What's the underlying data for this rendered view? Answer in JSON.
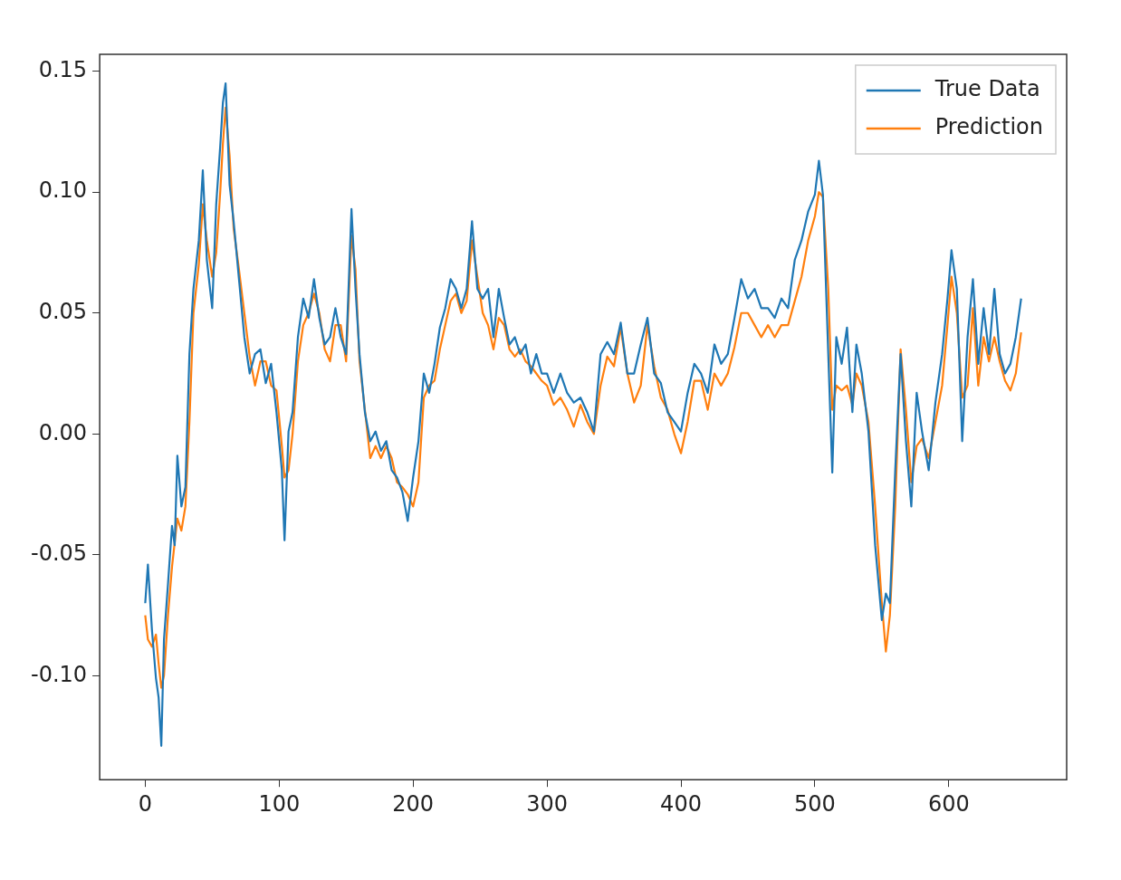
{
  "chart_data": {
    "type": "line",
    "xlim": [
      -34,
      688
    ],
    "ylim": [
      -0.143,
      0.157
    ],
    "xticks": [
      0,
      100,
      200,
      300,
      400,
      500,
      600
    ],
    "yticks": [
      {
        "value": -0.1,
        "label": "-0.10"
      },
      {
        "value": -0.05,
        "label": "-0.05"
      },
      {
        "value": 0,
        "label": "0.00"
      },
      {
        "value": 0.05,
        "label": "0.05"
      },
      {
        "value": 0.1,
        "label": "0.10"
      },
      0.15
    ],
    "grid": false,
    "legend": "top right",
    "marker": "none",
    "line_style": "solid",
    "x": [
      0,
      2,
      5,
      8,
      10,
      12,
      14,
      17,
      20,
      22,
      24,
      27,
      30,
      33,
      36,
      40,
      43,
      46,
      50,
      53,
      56,
      58,
      60,
      63,
      66,
      70,
      74,
      78,
      82,
      86,
      90,
      94,
      98,
      102,
      104,
      107,
      110,
      114,
      118,
      122,
      126,
      130,
      134,
      138,
      142,
      146,
      150,
      154,
      157,
      160,
      164,
      168,
      172,
      176,
      180,
      184,
      188,
      192,
      196,
      200,
      204,
      208,
      212,
      216,
      220,
      224,
      228,
      232,
      236,
      240,
      244,
      248,
      252,
      256,
      260,
      264,
      268,
      272,
      276,
      280,
      284,
      288,
      292,
      296,
      300,
      305,
      310,
      315,
      320,
      325,
      330,
      335,
      340,
      345,
      350,
      355,
      360,
      365,
      370,
      375,
      380,
      385,
      390,
      395,
      400,
      405,
      410,
      415,
      420,
      425,
      430,
      435,
      440,
      445,
      450,
      455,
      460,
      465,
      470,
      475,
      480,
      485,
      490,
      495,
      500,
      503,
      506,
      510,
      513,
      516,
      520,
      524,
      528,
      531,
      535,
      540,
      545,
      550,
      553,
      556,
      560,
      564,
      568,
      572,
      576,
      580,
      585,
      590,
      595,
      599,
      602,
      606,
      610,
      614,
      618,
      622,
      626,
      630,
      634,
      638,
      642,
      646,
      650,
      654
    ],
    "series": [
      {
        "name": "True Data",
        "color": "#1f77b4",
        "values": [
          -0.07,
          -0.054,
          -0.081,
          -0.101,
          -0.109,
          -0.129,
          -0.085,
          -0.062,
          -0.038,
          -0.046,
          -0.009,
          -0.03,
          -0.022,
          0.033,
          0.06,
          0.08,
          0.109,
          0.072,
          0.052,
          0.095,
          0.119,
          0.137,
          0.145,
          0.103,
          0.088,
          0.064,
          0.04,
          0.025,
          0.033,
          0.035,
          0.021,
          0.029,
          0.009,
          -0.015,
          -0.044,
          0.001,
          0.009,
          0.04,
          0.056,
          0.048,
          0.064,
          0.048,
          0.037,
          0.04,
          0.052,
          0.04,
          0.033,
          0.093,
          0.06,
          0.033,
          0.009,
          -0.003,
          0.001,
          -0.007,
          -0.003,
          -0.015,
          -0.018,
          -0.024,
          -0.036,
          -0.018,
          -0.003,
          0.025,
          0.017,
          0.029,
          0.044,
          0.052,
          0.064,
          0.06,
          0.052,
          0.06,
          0.088,
          0.06,
          0.056,
          0.06,
          0.04,
          0.06,
          0.048,
          0.037,
          0.04,
          0.033,
          0.037,
          0.025,
          0.033,
          0.025,
          0.025,
          0.017,
          0.025,
          0.017,
          0.013,
          0.015,
          0.009,
          0.001,
          0.033,
          0.038,
          0.033,
          0.046,
          0.025,
          0.025,
          0.037,
          0.048,
          0.025,
          0.021,
          0.009,
          0.005,
          0.001,
          0.017,
          0.029,
          0.025,
          0.017,
          0.037,
          0.029,
          0.033,
          0.048,
          0.064,
          0.056,
          0.06,
          0.052,
          0.052,
          0.048,
          0.056,
          0.052,
          0.072,
          0.08,
          0.092,
          0.099,
          0.113,
          0.099,
          0.033,
          -0.016,
          0.04,
          0.029,
          0.044,
          0.009,
          0.037,
          0.025,
          0.001,
          -0.046,
          -0.077,
          -0.066,
          -0.07,
          -0.015,
          0.033,
          -0.003,
          -0.03,
          0.017,
          0.001,
          -0.015,
          0.013,
          0.033,
          0.056,
          0.076,
          0.06,
          -0.003,
          0.04,
          0.064,
          0.029,
          0.052,
          0.033,
          0.06,
          0.033,
          0.025,
          0.029,
          0.04,
          0.056
        ]
      },
      {
        "name": "Prediction",
        "color": "#ff7f0e",
        "values": [
          -0.075,
          -0.085,
          -0.088,
          -0.083,
          -0.095,
          -0.105,
          -0.1,
          -0.075,
          -0.055,
          -0.045,
          -0.035,
          -0.04,
          -0.03,
          0.005,
          0.05,
          0.07,
          0.095,
          0.08,
          0.065,
          0.075,
          0.1,
          0.12,
          0.135,
          0.115,
          0.085,
          0.068,
          0.05,
          0.032,
          0.02,
          0.03,
          0.03,
          0.02,
          0.018,
          -0.005,
          -0.018,
          -0.015,
          0.0,
          0.03,
          0.045,
          0.05,
          0.058,
          0.05,
          0.035,
          0.03,
          0.045,
          0.045,
          0.03,
          0.082,
          0.068,
          0.03,
          0.01,
          -0.01,
          -0.005,
          -0.01,
          -0.005,
          -0.01,
          -0.02,
          -0.022,
          -0.025,
          -0.03,
          -0.02,
          0.015,
          0.02,
          0.022,
          0.035,
          0.045,
          0.055,
          0.058,
          0.05,
          0.055,
          0.08,
          0.065,
          0.05,
          0.045,
          0.035,
          0.048,
          0.045,
          0.035,
          0.032,
          0.035,
          0.03,
          0.028,
          0.025,
          0.022,
          0.02,
          0.012,
          0.015,
          0.01,
          0.003,
          0.012,
          0.005,
          0.0,
          0.02,
          0.032,
          0.028,
          0.044,
          0.025,
          0.013,
          0.02,
          0.045,
          0.028,
          0.015,
          0.01,
          0.0,
          -0.008,
          0.005,
          0.022,
          0.022,
          0.01,
          0.025,
          0.02,
          0.025,
          0.036,
          0.05,
          0.05,
          0.045,
          0.04,
          0.045,
          0.04,
          0.045,
          0.045,
          0.055,
          0.065,
          0.08,
          0.09,
          0.1,
          0.098,
          0.06,
          0.01,
          0.02,
          0.018,
          0.02,
          0.012,
          0.025,
          0.02,
          0.005,
          -0.03,
          -0.07,
          -0.09,
          -0.075,
          -0.03,
          0.035,
          0.01,
          -0.02,
          -0.005,
          -0.002,
          -0.01,
          0.005,
          0.02,
          0.045,
          0.065,
          0.05,
          0.015,
          0.02,
          0.052,
          0.02,
          0.04,
          0.03,
          0.04,
          0.03,
          0.022,
          0.018,
          0.025,
          0.042
        ]
      }
    ]
  }
}
